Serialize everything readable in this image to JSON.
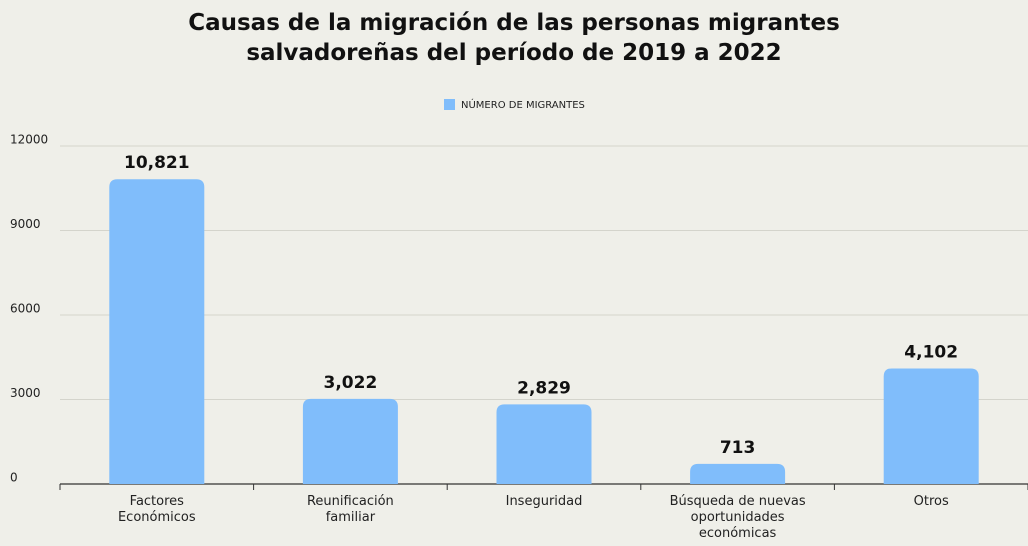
{
  "chart_data": {
    "type": "bar",
    "title": "Causas de la migración de las personas migrantes salvadoreñas del período de 2019 a 2022",
    "categories": [
      "Factores Económicos",
      "Reunificación familiar",
      "Inseguridad",
      "Búsqueda de nuevas oportunidades económicas",
      "Otros"
    ],
    "series": [
      {
        "name": "NÚMERO DE MIGRANTES",
        "color": "#80bdfb",
        "values": [
          10821,
          3022,
          2829,
          713,
          4102
        ],
        "value_labels": [
          "10,821",
          "3,022",
          "2,829",
          "713",
          "4,102"
        ]
      }
    ],
    "ylim": [
      0,
      12000
    ],
    "yticks": [
      0,
      3000,
      6000,
      9000,
      12000
    ],
    "grid": true,
    "legend": "top"
  }
}
